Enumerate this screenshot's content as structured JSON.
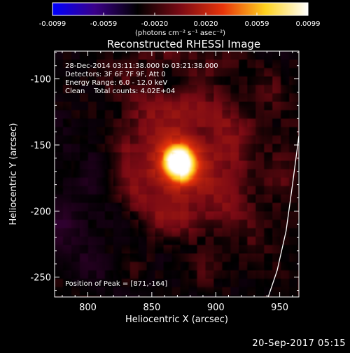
{
  "chart_data": {
    "type": "heatmap",
    "title": "Reconstructed RHESSI Image",
    "xlabel": "Heliocentric X (arcsec)",
    "ylabel": "Heliocentric Y (arcsec)",
    "xlim": [
      774,
      965
    ],
    "ylim": [
      -265,
      -79
    ],
    "xticks": [
      800,
      850,
      900,
      950
    ],
    "yticks": [
      -100,
      -150,
      -200,
      -250
    ],
    "peak": [
      871,
      -164
    ],
    "annotations": {
      "time_range": "28-Dec-2014 03:11:38.000 to 03:21:38.000",
      "detectors": "Detectors: 3F 6F 7F 9F, Att 0",
      "energy": "Energy Range: 6.0 - 12.0 keV",
      "method": "Clean",
      "total_counts": "Total counts: 4.02E+04",
      "peak_position": "Position of Peak = [871,-164]"
    },
    "colorbar": {
      "min": -0.0099,
      "max": 0.0099,
      "ticks": [
        "-0.0099",
        "-0.0059",
        "-0.0020",
        "0.0020",
        "0.0059",
        "0.0099"
      ],
      "label": "(photons cm⁻² s⁻¹ asec⁻²)",
      "colors": [
        "#0000ff",
        "#3a0088",
        "#000000",
        "#7a0a14",
        "#e8340a",
        "#ffd21e",
        "#ffffff"
      ]
    },
    "limb_curve": [
      [
        965,
        -143
      ],
      [
        960,
        -180
      ],
      [
        955,
        -215
      ],
      [
        948,
        -245
      ],
      [
        941,
        -265
      ]
    ]
  },
  "footer": {
    "date_stamp": "20-Sep-2017 05:15"
  }
}
